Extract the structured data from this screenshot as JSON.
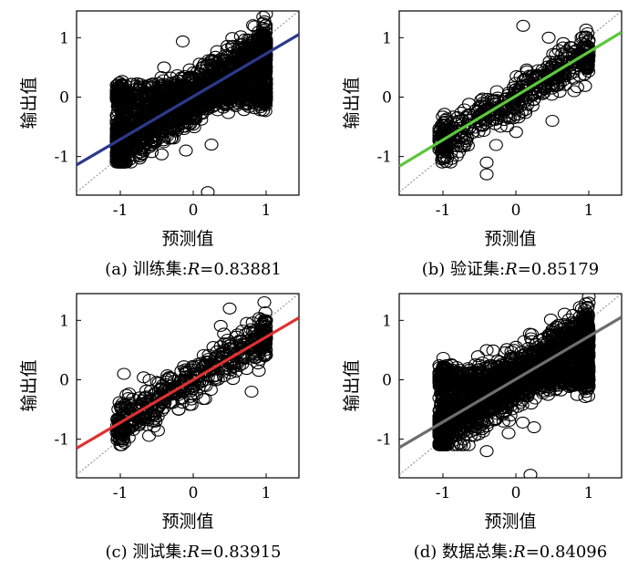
{
  "chart_data": [
    {
      "type": "scatter",
      "panel": "(a)",
      "caption_prefix": "(a) 训练集:",
      "caption_r_symbol": "R",
      "caption_r_value": "=0.83881",
      "xlabel": "预测值",
      "ylabel": "输出值",
      "xlim": [
        -1.6,
        1.45
      ],
      "ylim": [
        -1.65,
        1.45
      ],
      "xticks": [
        "-1",
        "0",
        "1"
      ],
      "yticks": [
        "1",
        "0",
        "-1"
      ],
      "fit_line_color": "#2b3a8c",
      "fit_line": {
        "slope": 0.72,
        "intercept": 0.01
      },
      "reference_line": "y=x",
      "density": "dense",
      "n_points": 2400,
      "sample_points": [
        [
          -1.0,
          -1.05
        ],
        [
          -0.95,
          -0.6
        ],
        [
          -1.0,
          0.0
        ],
        [
          -0.5,
          -0.2
        ],
        [
          0.0,
          0.0
        ],
        [
          0.3,
          0.3
        ],
        [
          0.8,
          0.7
        ],
        [
          1.0,
          1.4
        ],
        [
          0.2,
          -1.6
        ],
        [
          0.25,
          -0.8
        ],
        [
          -0.4,
          0.5
        ],
        [
          0.6,
          -0.1
        ],
        [
          -0.1,
          -0.9
        ],
        [
          1.0,
          0.0
        ],
        [
          -0.95,
          -0.35
        ]
      ]
    },
    {
      "type": "scatter",
      "panel": "(b)",
      "caption_prefix": "(b) 验证集:",
      "caption_r_symbol": "R",
      "caption_r_value": "=0.85179",
      "xlabel": "预测值",
      "ylabel": "输出值",
      "xlim": [
        -1.6,
        1.45
      ],
      "ylim": [
        -1.65,
        1.45
      ],
      "xticks": [
        "-1",
        "0",
        "1"
      ],
      "yticks": [
        "1",
        "0",
        "-1"
      ],
      "fit_line_color": "#5cc73b",
      "fit_line": {
        "slope": 0.74,
        "intercept": 0.02
      },
      "reference_line": "y=x",
      "density": "medium",
      "n_points": 520,
      "sample_points": [
        [
          -1.0,
          -1.0
        ],
        [
          -0.9,
          -0.55
        ],
        [
          -0.5,
          -0.3
        ],
        [
          -0.2,
          -0.15
        ],
        [
          0.0,
          0.0
        ],
        [
          0.1,
          0.2
        ],
        [
          0.4,
          0.35
        ],
        [
          0.7,
          0.6
        ],
        [
          0.9,
          1.0
        ],
        [
          0.1,
          1.2
        ],
        [
          0.45,
          1.0
        ],
        [
          -0.4,
          -1.3
        ],
        [
          -0.4,
          -1.1
        ],
        [
          0.5,
          -0.4
        ],
        [
          0.8,
          0.1
        ]
      ]
    },
    {
      "type": "scatter",
      "panel": "(c)",
      "caption_prefix": "(c) 测试集:",
      "caption_r_symbol": "R",
      "caption_r_value": "=0.83915",
      "xlabel": "预测值",
      "ylabel": "输出值",
      "xlim": [
        -1.6,
        1.45
      ],
      "ylim": [
        -1.65,
        1.45
      ],
      "xticks": [
        "-1",
        "0",
        "1"
      ],
      "yticks": [
        "1",
        "0",
        "-1"
      ],
      "fit_line_color": "#e03030",
      "fit_line": {
        "slope": 0.72,
        "intercept": 0.0
      },
      "reference_line": "y=x",
      "density": "medium",
      "n_points": 520,
      "sample_points": [
        [
          -1.0,
          -1.0
        ],
        [
          -0.9,
          -0.6
        ],
        [
          -0.95,
          0.1
        ],
        [
          -0.5,
          -0.3
        ],
        [
          0.0,
          0.0
        ],
        [
          0.3,
          0.35
        ],
        [
          0.5,
          1.2
        ],
        [
          0.7,
          0.6
        ],
        [
          1.0,
          1.0
        ],
        [
          0.9,
          0.15
        ],
        [
          0.8,
          -0.2
        ],
        [
          -0.6,
          0.0
        ],
        [
          -0.2,
          -0.5
        ],
        [
          0.2,
          0.3
        ],
        [
          0.6,
          0.3
        ]
      ]
    },
    {
      "type": "scatter",
      "panel": "(d)",
      "caption_prefix": "(d) 数据总集:",
      "caption_r_symbol": "R",
      "caption_r_value": "=0.84096",
      "xlabel": "预测值",
      "ylabel": "输出值",
      "xlim": [
        -1.6,
        1.45
      ],
      "ylim": [
        -1.65,
        1.45
      ],
      "xticks": [
        "-1",
        "0",
        "1"
      ],
      "yticks": [
        "1",
        "0",
        "-1"
      ],
      "fit_line_color": "#6e6e6e",
      "fit_line": {
        "slope": 0.72,
        "intercept": 0.01
      },
      "reference_line": "y=x",
      "density": "dense",
      "n_points": 2800,
      "sample_points": [
        [
          -1.0,
          -1.05
        ],
        [
          -0.95,
          -0.6
        ],
        [
          -1.0,
          0.0
        ],
        [
          -0.5,
          -0.2
        ],
        [
          0.0,
          0.0
        ],
        [
          0.3,
          0.3
        ],
        [
          0.8,
          0.7
        ],
        [
          1.0,
          1.4
        ],
        [
          0.2,
          -1.6
        ],
        [
          0.25,
          -0.8
        ],
        [
          -0.4,
          0.5
        ],
        [
          0.6,
          -0.1
        ],
        [
          -0.1,
          -0.9
        ],
        [
          1.0,
          0.0
        ],
        [
          -0.4,
          -1.2
        ]
      ]
    }
  ]
}
